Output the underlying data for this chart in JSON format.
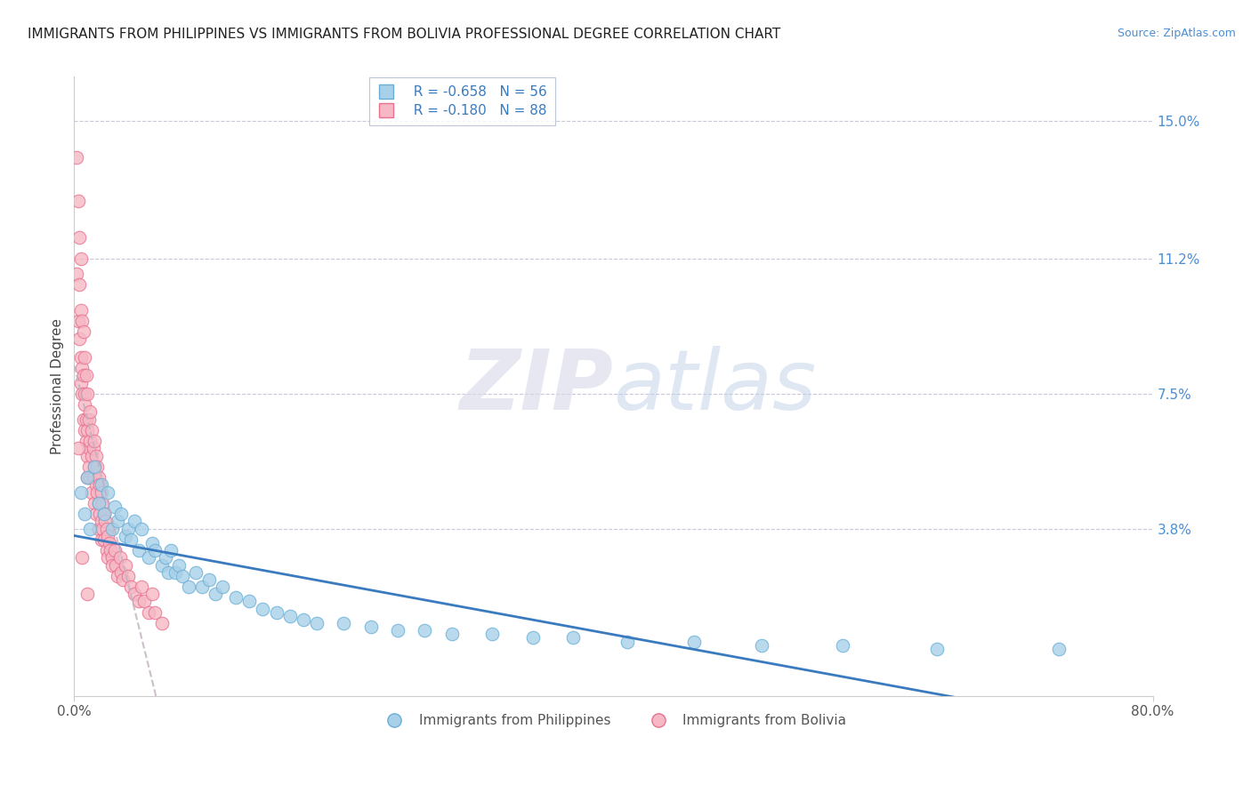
{
  "title": "IMMIGRANTS FROM PHILIPPINES VS IMMIGRANTS FROM BOLIVIA PROFESSIONAL DEGREE CORRELATION CHART",
  "source_text": "Source: ZipAtlas.com",
  "ylabel": "Professional Degree",
  "right_yticks": [
    0.0,
    0.038,
    0.075,
    0.112,
    0.15
  ],
  "right_yticklabels": [
    "",
    "3.8%",
    "7.5%",
    "11.2%",
    "15.0%"
  ],
  "xlim": [
    0.0,
    0.8
  ],
  "ylim": [
    -0.008,
    0.162
  ],
  "philippines_color": "#a8d0e8",
  "bolivia_color": "#f5b8c4",
  "philippines_edge": "#6aaed6",
  "bolivia_edge": "#e87090",
  "regression_philippines_color": "#3a7bbf",
  "regression_bolivia_color": "#cc4060",
  "regression_bolivia_dash": "#c0b0c0",
  "legend_r_philippines": "R = -0.658",
  "legend_n_philippines": "N = 56",
  "legend_r_bolivia": "R = -0.180",
  "legend_n_bolivia": "N = 88",
  "watermark_zip": "ZIP",
  "watermark_atlas": "atlas",
  "philippines_x": [
    0.005,
    0.008,
    0.01,
    0.012,
    0.015,
    0.018,
    0.02,
    0.022,
    0.025,
    0.028,
    0.03,
    0.032,
    0.035,
    0.038,
    0.04,
    0.042,
    0.045,
    0.048,
    0.05,
    0.055,
    0.058,
    0.06,
    0.065,
    0.068,
    0.07,
    0.072,
    0.075,
    0.078,
    0.08,
    0.085,
    0.09,
    0.095,
    0.1,
    0.105,
    0.11,
    0.12,
    0.13,
    0.14,
    0.15,
    0.16,
    0.17,
    0.18,
    0.2,
    0.22,
    0.24,
    0.26,
    0.28,
    0.31,
    0.34,
    0.37,
    0.41,
    0.46,
    0.51,
    0.57,
    0.64,
    0.73
  ],
  "philippines_y": [
    0.048,
    0.042,
    0.052,
    0.038,
    0.055,
    0.045,
    0.05,
    0.042,
    0.048,
    0.038,
    0.044,
    0.04,
    0.042,
    0.036,
    0.038,
    0.035,
    0.04,
    0.032,
    0.038,
    0.03,
    0.034,
    0.032,
    0.028,
    0.03,
    0.026,
    0.032,
    0.026,
    0.028,
    0.025,
    0.022,
    0.026,
    0.022,
    0.024,
    0.02,
    0.022,
    0.019,
    0.018,
    0.016,
    0.015,
    0.014,
    0.013,
    0.012,
    0.012,
    0.011,
    0.01,
    0.01,
    0.009,
    0.009,
    0.008,
    0.008,
    0.007,
    0.007,
    0.006,
    0.006,
    0.005,
    0.005
  ],
  "bolivia_x": [
    0.002,
    0.002,
    0.003,
    0.003,
    0.004,
    0.004,
    0.004,
    0.005,
    0.005,
    0.005,
    0.005,
    0.006,
    0.006,
    0.006,
    0.007,
    0.007,
    0.007,
    0.008,
    0.008,
    0.008,
    0.008,
    0.009,
    0.009,
    0.009,
    0.01,
    0.01,
    0.01,
    0.01,
    0.011,
    0.011,
    0.011,
    0.012,
    0.012,
    0.012,
    0.013,
    0.013,
    0.013,
    0.014,
    0.014,
    0.015,
    0.015,
    0.015,
    0.016,
    0.016,
    0.016,
    0.017,
    0.017,
    0.018,
    0.018,
    0.018,
    0.019,
    0.019,
    0.02,
    0.02,
    0.02,
    0.021,
    0.021,
    0.022,
    0.022,
    0.023,
    0.024,
    0.024,
    0.025,
    0.025,
    0.026,
    0.027,
    0.028,
    0.028,
    0.03,
    0.031,
    0.032,
    0.034,
    0.035,
    0.036,
    0.038,
    0.04,
    0.042,
    0.045,
    0.048,
    0.05,
    0.052,
    0.055,
    0.058,
    0.06,
    0.065,
    0.003,
    0.006,
    0.01
  ],
  "bolivia_y": [
    0.14,
    0.108,
    0.128,
    0.095,
    0.118,
    0.105,
    0.09,
    0.112,
    0.098,
    0.085,
    0.078,
    0.095,
    0.082,
    0.075,
    0.092,
    0.08,
    0.068,
    0.085,
    0.075,
    0.065,
    0.072,
    0.08,
    0.068,
    0.062,
    0.075,
    0.065,
    0.058,
    0.052,
    0.068,
    0.06,
    0.055,
    0.07,
    0.062,
    0.052,
    0.065,
    0.058,
    0.048,
    0.06,
    0.052,
    0.062,
    0.055,
    0.045,
    0.058,
    0.05,
    0.042,
    0.055,
    0.048,
    0.052,
    0.045,
    0.038,
    0.05,
    0.042,
    0.048,
    0.04,
    0.035,
    0.045,
    0.038,
    0.042,
    0.035,
    0.04,
    0.038,
    0.032,
    0.036,
    0.03,
    0.034,
    0.032,
    0.03,
    0.028,
    0.032,
    0.028,
    0.025,
    0.03,
    0.026,
    0.024,
    0.028,
    0.025,
    0.022,
    0.02,
    0.018,
    0.022,
    0.018,
    0.015,
    0.02,
    0.015,
    0.012,
    0.06,
    0.03,
    0.02
  ]
}
